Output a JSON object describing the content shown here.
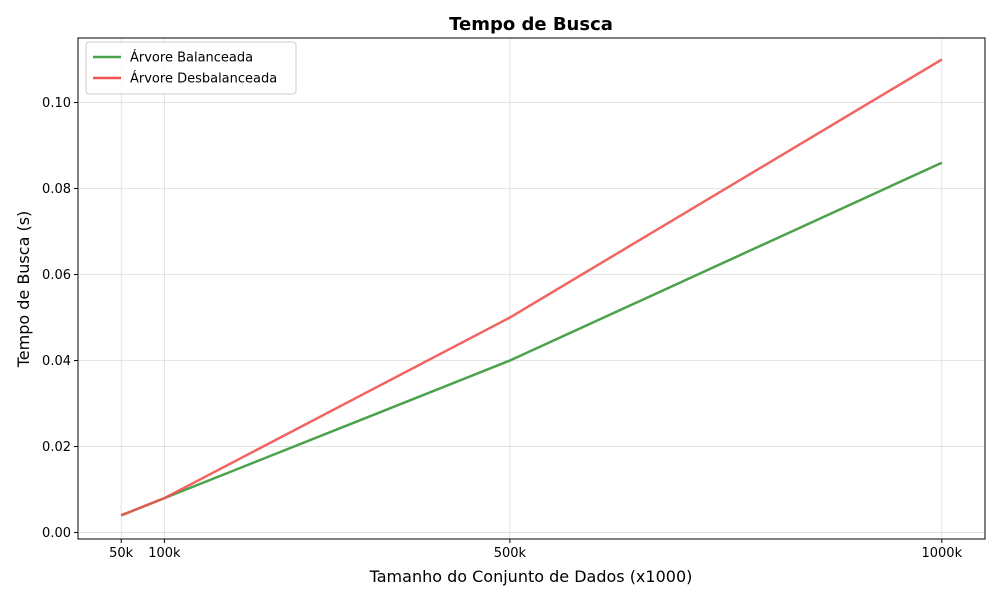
{
  "chart_data": {
    "type": "line",
    "title": "Tempo de Busca",
    "xlabel": "Tamanho do Conjunto de Dados (x1000)",
    "ylabel": "Tempo de Busca (s)",
    "x": [
      50,
      100,
      500,
      1000
    ],
    "x_tick_labels": [
      "50k",
      "100k",
      "500k",
      "1000k"
    ],
    "xlim": [
      0,
      1050
    ],
    "ylim": [
      -0.0015,
      0.115
    ],
    "y_ticks": [
      0.0,
      0.02,
      0.04,
      0.06,
      0.08,
      0.1
    ],
    "y_tick_labels": [
      "0.00",
      "0.02",
      "0.04",
      "0.06",
      "0.08",
      "0.10"
    ],
    "grid": true,
    "legend_position": "top-left",
    "series": [
      {
        "name": "Árvore Balanceada",
        "color": "#4ca24c",
        "values": [
          0.004,
          0.008,
          0.04,
          0.086
        ]
      },
      {
        "name": "Árvore Desbalanceada",
        "color": "#ef5350",
        "values": [
          0.004,
          0.008,
          0.05,
          0.11
        ]
      }
    ]
  }
}
